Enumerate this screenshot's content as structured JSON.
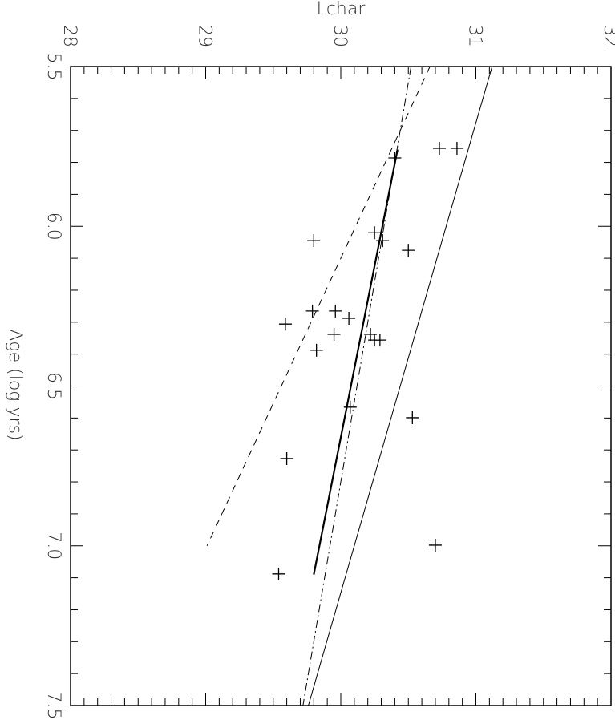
{
  "chart_data": {
    "type": "scatter",
    "xlabel": "Age (log yrs)",
    "ylabel": "Lchar",
    "x": [
      5.756,
      5.756,
      5.786,
      6.02,
      6.045,
      6.045,
      6.075,
      6.265,
      6.265,
      6.288,
      6.306,
      6.338,
      6.338,
      6.356,
      6.356,
      6.388,
      6.566,
      6.599,
      6.727,
      6.998,
      7.088
    ],
    "values": [
      30.73,
      30.86,
      30.4,
      30.25,
      30.31,
      29.8,
      30.5,
      29.79,
      29.96,
      30.06,
      29.59,
      29.95,
      30.22,
      30.25,
      30.29,
      29.82,
      30.07,
      30.53,
      29.6,
      30.7,
      29.54
    ],
    "color": "#000000",
    "lines": [
      {
        "style": "solid",
        "x": [
          5.5,
          7.5
        ],
        "values": [
          31.12,
          29.76
        ]
      },
      {
        "style": "dashed",
        "x": [
          5.5,
          7.0
        ],
        "values": [
          30.66,
          29.01
        ]
      },
      {
        "style": "dash-dot",
        "x": [
          5.5,
          7.5
        ],
        "values": [
          30.52,
          29.72
        ]
      },
      {
        "style": "thick",
        "x": [
          5.76,
          7.09
        ],
        "values": [
          30.42,
          29.8
        ]
      }
    ],
    "xlim": [
      5.5,
      7.5
    ],
    "xticks": [
      5.5,
      {
        "value": 6,
        "label": "6.0"
      },
      6.5,
      {
        "value": 7,
        "label": "7.0"
      },
      7.5
    ],
    "ylim": [
      28,
      32
    ],
    "yticks": [
      28,
      29,
      30,
      31,
      32
    ]
  }
}
